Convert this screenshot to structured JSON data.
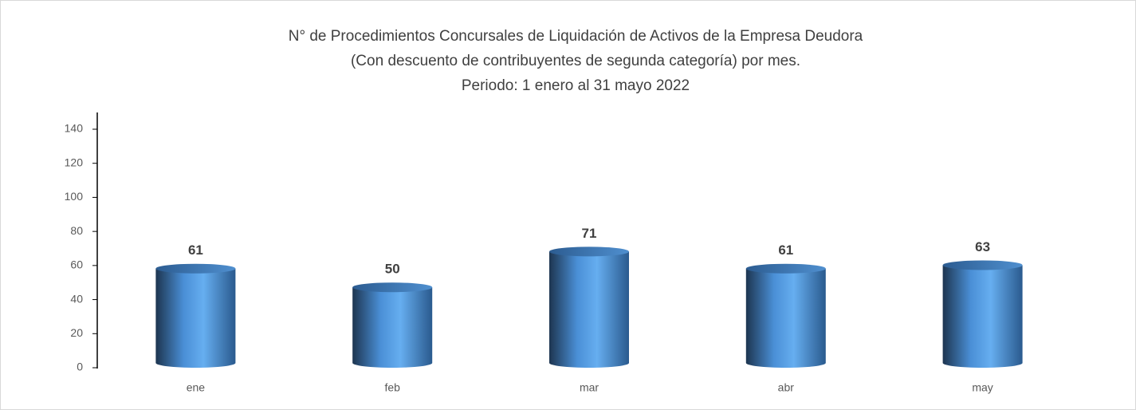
{
  "chart_data": {
    "type": "cylinder-bar",
    "title": [
      "N° de Procedimientos Concursales de Liquidación de Activos de la Empresa Deudora",
      "(Con descuento de contribuyentes de segunda categoría) por mes.",
      "Periodo: 1 enero al 31 mayo 2022"
    ],
    "categories": [
      "ene",
      "feb",
      "mar",
      "abr",
      "may"
    ],
    "values": [
      61,
      50,
      71,
      61,
      63
    ],
    "color": "#4a8fd6",
    "ylim": [
      0,
      140
    ],
    "yticks": [
      0,
      20,
      40,
      60,
      80,
      100,
      120,
      140
    ],
    "grid": false
  }
}
